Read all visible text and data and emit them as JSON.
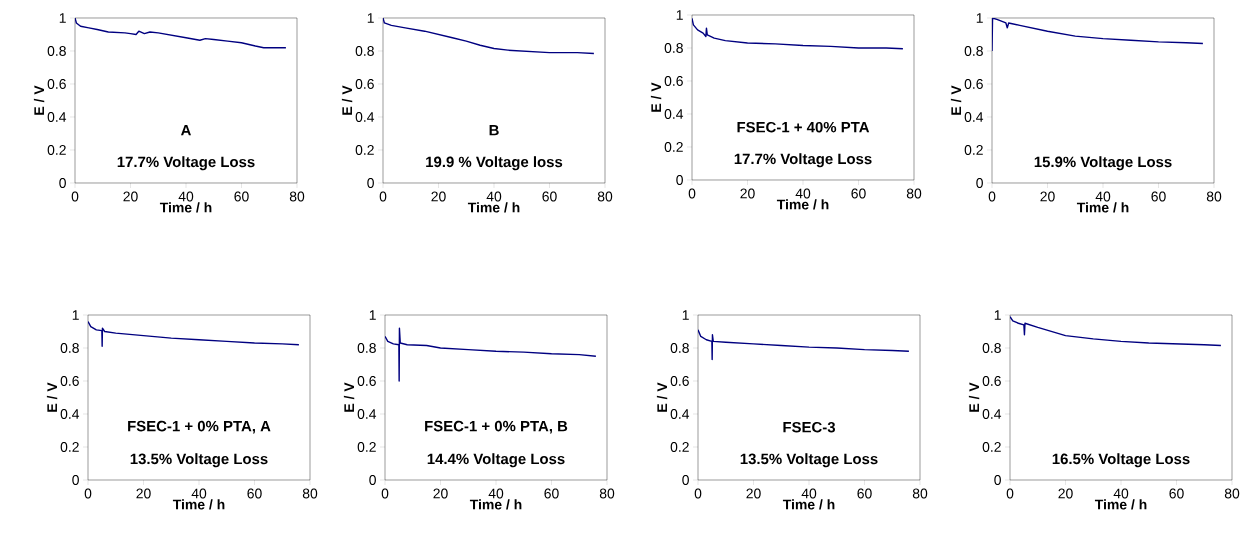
{
  "chart_data": [
    {
      "type": "line",
      "xlabel": "Time / h",
      "ylabel": "E / V",
      "annotations": [
        "A",
        "17.7% Voltage Loss"
      ],
      "color": "#000080",
      "xlim": [
        0,
        80
      ],
      "ylim": [
        0,
        1
      ],
      "xticks": [
        0,
        20,
        40,
        60,
        80
      ],
      "yticks": [
        0,
        0.2,
        0.4,
        0.6,
        0.8,
        1
      ],
      "grid": false,
      "x": [
        0,
        0.5,
        2,
        5,
        8,
        12,
        18,
        20,
        22,
        23,
        25,
        27,
        30,
        35,
        40,
        45,
        47,
        50,
        55,
        60,
        65,
        68,
        72,
        76
      ],
      "values": [
        1.0,
        0.97,
        0.95,
        0.94,
        0.93,
        0.915,
        0.91,
        0.905,
        0.9,
        0.92,
        0.905,
        0.915,
        0.91,
        0.895,
        0.88,
        0.865,
        0.875,
        0.87,
        0.86,
        0.85,
        0.83,
        0.82,
        0.82,
        0.82
      ]
    },
    {
      "type": "line",
      "xlabel": "Time / h",
      "ylabel": "E / V",
      "annotations": [
        "B",
        "19.9 % Voltage loss"
      ],
      "color": "#000080",
      "xlim": [
        0,
        80
      ],
      "ylim": [
        0,
        1
      ],
      "xticks": [
        0,
        20,
        40,
        60,
        80
      ],
      "yticks": [
        0,
        0.2,
        0.4,
        0.6,
        0.8,
        1
      ],
      "grid": false,
      "x": [
        0,
        0.5,
        3,
        8,
        15,
        20,
        25,
        30,
        35,
        40,
        45,
        50,
        55,
        60,
        70,
        76
      ],
      "values": [
        1.0,
        0.97,
        0.955,
        0.94,
        0.92,
        0.9,
        0.88,
        0.86,
        0.835,
        0.815,
        0.805,
        0.8,
        0.795,
        0.79,
        0.79,
        0.785
      ]
    },
    {
      "type": "line",
      "xlabel": "Time / h",
      "ylabel": "E / V",
      "annotations": [
        "FSEC-1 + 40% PTA",
        "17.7% Voltage Loss"
      ],
      "color": "#000080",
      "xlim": [
        0,
        80
      ],
      "ylim": [
        0,
        1
      ],
      "xticks": [
        0,
        20,
        40,
        60,
        80
      ],
      "yticks": [
        0,
        0.2,
        0.4,
        0.6,
        0.8,
        1
      ],
      "grid": false,
      "x": [
        0,
        0.5,
        2,
        4,
        5,
        5.2,
        5.5,
        8,
        12,
        20,
        30,
        40,
        50,
        60,
        70,
        76
      ],
      "values": [
        0.98,
        0.94,
        0.91,
        0.89,
        0.87,
        0.92,
        0.88,
        0.86,
        0.845,
        0.83,
        0.825,
        0.815,
        0.81,
        0.8,
        0.8,
        0.795
      ]
    },
    {
      "type": "line",
      "xlabel": "Time / h",
      "ylabel": "E / V",
      "annotations": [
        "15.9% Voltage Loss"
      ],
      "color": "#000080",
      "xlim": [
        0,
        80
      ],
      "ylim": [
        0,
        1
      ],
      "xticks": [
        0,
        20,
        40,
        60,
        80
      ],
      "yticks": [
        0,
        0.2,
        0.4,
        0.6,
        0.8,
        1
      ],
      "grid": false,
      "x": [
        0,
        0.2,
        2,
        5,
        5.5,
        6,
        10,
        20,
        30,
        40,
        50,
        60,
        70,
        76
      ],
      "values": [
        0.8,
        1.0,
        0.99,
        0.97,
        0.94,
        0.97,
        0.955,
        0.92,
        0.89,
        0.875,
        0.865,
        0.855,
        0.85,
        0.845
      ]
    },
    {
      "type": "line",
      "xlabel": "Time / h",
      "ylabel": "E / V",
      "annotations": [
        "FSEC-1 + 0% PTA, A",
        "13.5% Voltage Loss"
      ],
      "color": "#000080",
      "xlim": [
        0,
        80
      ],
      "ylim": [
        0,
        1
      ],
      "xticks": [
        0,
        20,
        40,
        60,
        80
      ],
      "yticks": [
        0,
        0.2,
        0.4,
        0.6,
        0.8,
        1
      ],
      "grid": false,
      "x": [
        0,
        1,
        3,
        5,
        5.1,
        5.2,
        6,
        10,
        20,
        30,
        40,
        50,
        60,
        70,
        76
      ],
      "values": [
        0.96,
        0.93,
        0.91,
        0.905,
        0.81,
        0.92,
        0.9,
        0.89,
        0.875,
        0.86,
        0.85,
        0.84,
        0.83,
        0.825,
        0.82
      ]
    },
    {
      "type": "line",
      "xlabel": "Time / h",
      "ylabel": "E / V",
      "annotations": [
        "FSEC-1 + 0% PTA, B",
        "14.4% Voltage Loss"
      ],
      "color": "#000080",
      "xlim": [
        0,
        80
      ],
      "ylim": [
        0,
        1
      ],
      "xticks": [
        0,
        20,
        40,
        60,
        80
      ],
      "yticks": [
        0,
        0.2,
        0.4,
        0.6,
        0.8,
        1
      ],
      "grid": false,
      "x": [
        0,
        1,
        3,
        5,
        5.1,
        5.2,
        5.5,
        8,
        15,
        20,
        30,
        40,
        50,
        60,
        70,
        76
      ],
      "values": [
        0.87,
        0.84,
        0.825,
        0.82,
        0.6,
        0.92,
        0.83,
        0.82,
        0.815,
        0.8,
        0.79,
        0.78,
        0.775,
        0.765,
        0.76,
        0.75
      ]
    },
    {
      "type": "line",
      "xlabel": "Time / h",
      "ylabel": "E / V",
      "annotations": [
        "FSEC-3",
        "13.5% Voltage Loss"
      ],
      "color": "#000080",
      "xlim": [
        0,
        80
      ],
      "ylim": [
        0,
        1
      ],
      "xticks": [
        0,
        20,
        40,
        60,
        80
      ],
      "yticks": [
        0,
        0.2,
        0.4,
        0.6,
        0.8,
        1
      ],
      "grid": false,
      "x": [
        0,
        1,
        3,
        5,
        5.1,
        5.2,
        5.5,
        10,
        20,
        30,
        40,
        50,
        60,
        70,
        76
      ],
      "values": [
        0.91,
        0.87,
        0.85,
        0.84,
        0.73,
        0.88,
        0.84,
        0.835,
        0.825,
        0.815,
        0.805,
        0.8,
        0.79,
        0.785,
        0.78
      ]
    },
    {
      "type": "line",
      "xlabel": "Time / h",
      "ylabel": "E / V",
      "annotations": [
        "16.5% Voltage Loss"
      ],
      "color": "#000080",
      "xlim": [
        0,
        80
      ],
      "ylim": [
        0,
        1
      ],
      "xticks": [
        0,
        20,
        40,
        60,
        80
      ],
      "yticks": [
        0,
        0.2,
        0.4,
        0.6,
        0.8,
        1
      ],
      "grid": false,
      "x": [
        0,
        1,
        3,
        5,
        5.2,
        5.4,
        10,
        15,
        20,
        30,
        40,
        50,
        60,
        70,
        76
      ],
      "values": [
        0.99,
        0.965,
        0.95,
        0.94,
        0.88,
        0.95,
        0.925,
        0.9,
        0.875,
        0.855,
        0.84,
        0.83,
        0.825,
        0.82,
        0.815
      ]
    }
  ]
}
